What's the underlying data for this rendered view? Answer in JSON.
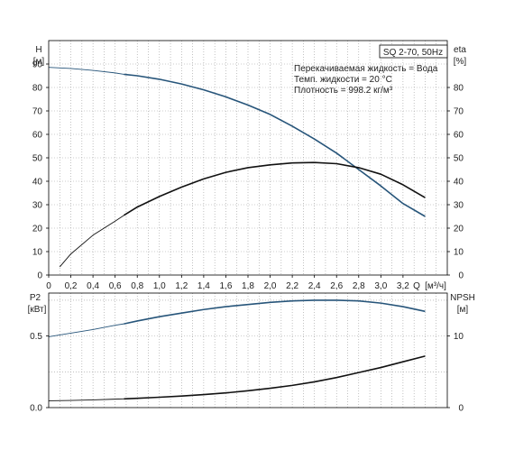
{
  "chart_data": {
    "type": "line",
    "legend": {
      "model": "SQ 2-70, 50Hz",
      "lines": [
        "Перекачиваемая жидкость = Вода",
        "Темп. жидкости = 20 °C",
        "Плотность = 998.2 кг/м³"
      ]
    },
    "x_axis": {
      "label": "Q",
      "unit": "[м³/ч]",
      "range": [
        0,
        3.6
      ],
      "ticks": [
        "0",
        "0,2",
        "0,4",
        "0,6",
        "0,8",
        "1,0",
        "1,2",
        "1,4",
        "1,6",
        "1,8",
        "2,0",
        "2,2",
        "2,4",
        "2,6",
        "2,8",
        "3,0",
        "3,2"
      ]
    },
    "top": {
      "left_axis": {
        "label": "H",
        "unit": "[м]",
        "range": [
          0,
          100
        ],
        "ticks": [
          0,
          10,
          20,
          30,
          40,
          50,
          60,
          70,
          80,
          90
        ]
      },
      "right_axis": {
        "label": "eta",
        "unit": "[%]",
        "range": [
          0,
          100
        ],
        "ticks": [
          0,
          10,
          20,
          30,
          40,
          50,
          60,
          70,
          80
        ]
      },
      "series": [
        {
          "kind": "H",
          "axis": "left",
          "color": "#27557a",
          "x": [
            0,
            0.2,
            0.4,
            0.6,
            0.68,
            0.8,
            1.0,
            1.2,
            1.4,
            1.6,
            1.8,
            2.0,
            2.2,
            2.4,
            2.6,
            2.8,
            3.0,
            3.2,
            3.4
          ],
          "y": [
            88.6,
            88.1,
            87.3,
            86.2,
            85.6,
            85.0,
            83.5,
            81.5,
            79.0,
            76.0,
            72.5,
            68.5,
            63.5,
            58.0,
            52.0,
            45.0,
            38.0,
            30.5,
            25.0
          ],
          "thin_until_x": 0.68
        },
        {
          "kind": "eta",
          "axis": "right",
          "color": "#111111",
          "x": [
            0.1,
            0.2,
            0.4,
            0.6,
            0.68,
            0.8,
            1.0,
            1.2,
            1.4,
            1.6,
            1.8,
            2.0,
            2.2,
            2.4,
            2.6,
            2.8,
            3.0,
            3.2,
            3.4
          ],
          "y": [
            3.5,
            9.0,
            17.0,
            23.0,
            25.5,
            29.0,
            33.5,
            37.5,
            41.0,
            43.8,
            45.8,
            47.0,
            47.8,
            48.0,
            47.5,
            45.8,
            43.0,
            38.5,
            33.0
          ],
          "thin_until_x": 0.68
        }
      ]
    },
    "bottom": {
      "left_axis": {
        "label": "P2",
        "unit": "[кВт]",
        "range": [
          0,
          0.8
        ],
        "ticks": [
          "0.0",
          "0.5"
        ]
      },
      "right_axis": {
        "label": "NPSH",
        "unit": "[м]",
        "range": [
          0,
          16
        ],
        "ticks": [
          0,
          10
        ]
      },
      "series": [
        {
          "kind": "P2",
          "axis": "left",
          "color": "#27557a",
          "x": [
            0,
            0.2,
            0.4,
            0.6,
            0.68,
            0.8,
            1.0,
            1.2,
            1.4,
            1.6,
            1.8,
            2.0,
            2.2,
            2.4,
            2.6,
            2.8,
            3.0,
            3.2,
            3.4
          ],
          "y": [
            0.495,
            0.52,
            0.545,
            0.575,
            0.585,
            0.605,
            0.635,
            0.66,
            0.685,
            0.705,
            0.72,
            0.735,
            0.745,
            0.75,
            0.75,
            0.745,
            0.73,
            0.705,
            0.672
          ],
          "thin_until_x": 0.68
        },
        {
          "kind": "NPSH",
          "axis": "right",
          "color": "#111111",
          "x": [
            0,
            0.2,
            0.4,
            0.6,
            0.68,
            0.8,
            1.0,
            1.2,
            1.4,
            1.6,
            1.8,
            2.0,
            2.2,
            2.4,
            2.6,
            2.8,
            3.0,
            3.2,
            3.4
          ],
          "y": [
            0.95,
            1.0,
            1.08,
            1.18,
            1.22,
            1.3,
            1.45,
            1.62,
            1.82,
            2.05,
            2.35,
            2.7,
            3.1,
            3.6,
            4.2,
            4.9,
            5.6,
            6.4,
            7.2
          ],
          "thin_until_x": 0.68
        }
      ]
    }
  }
}
